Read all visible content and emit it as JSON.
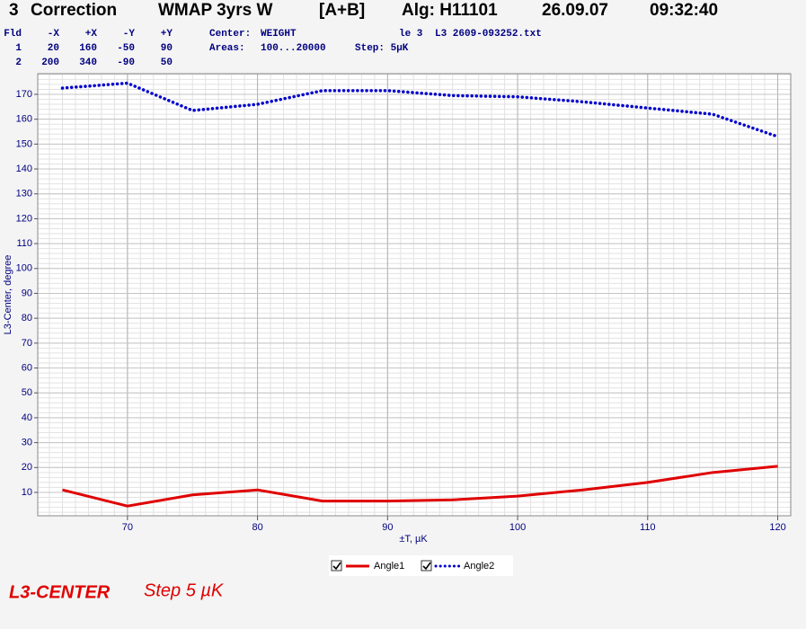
{
  "header": {
    "items": [
      "3",
      "Correction",
      "WMAP 3yrs W",
      "[A+B]",
      "Alg: H11101",
      "26.09.07",
      "09:32:40"
    ]
  },
  "params": {
    "columns": [
      "Fld",
      "-X",
      "+X",
      "-Y",
      "+Y"
    ],
    "rows": [
      [
        "1",
        "20",
        "160",
        "-50",
        "90"
      ],
      [
        "2",
        "200",
        "340",
        "-90",
        "50"
      ]
    ],
    "center_label": "Center:",
    "center": "WEIGHT",
    "le": "le 3",
    "file": "L3 2609-093252.txt",
    "areas_label": "Areas:",
    "areas": "100...20000",
    "step": "Step: 5µK"
  },
  "chart_data": {
    "type": "line",
    "x": [
      65,
      70,
      75,
      80,
      85,
      90,
      95,
      100,
      105,
      110,
      115,
      120
    ],
    "series": [
      {
        "name": "Angle1",
        "color": "#e00000",
        "style": "solid",
        "values": [
          11,
          4.5,
          9,
          11,
          6.5,
          6.5,
          7,
          8.5,
          11,
          14,
          18,
          20.5
        ]
      },
      {
        "name": "Angle2",
        "color": "#0000cc",
        "style": "dotted",
        "values": [
          172.5,
          174.5,
          163.5,
          166,
          171.5,
          171.5,
          169.5,
          169,
          167,
          164.5,
          162,
          153
        ]
      }
    ],
    "xlabel": "±T, µK",
    "ylabel": "L3-Center, degree",
    "xlim": [
      63.1,
      121
    ],
    "xticks": [
      70,
      80,
      90,
      100,
      110,
      120
    ],
    "ylim": [
      0.6,
      178.3
    ],
    "yticks": [
      10,
      20,
      30,
      40,
      50,
      60,
      70,
      80,
      90,
      100,
      110,
      120,
      130,
      140,
      150,
      160,
      170
    ],
    "grid": true
  },
  "footer": {
    "name": "L3-CENTER",
    "step": "Step 5 µK"
  }
}
